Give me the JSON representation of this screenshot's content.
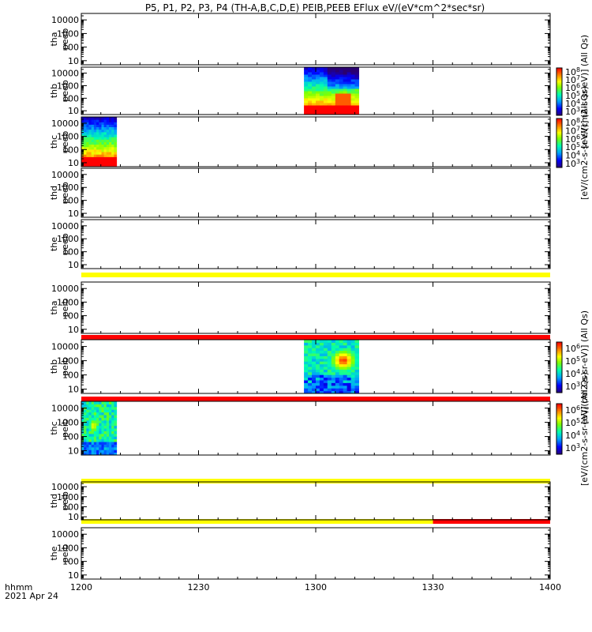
{
  "title": "P5, P1, P2, P3, P4 (TH-A,B,C,D,E) PEIB,PEEB EFlux eV/(eV*cm^2*sec*sr)",
  "footer": {
    "line1": "hhmm",
    "line2": "2021 Apr 24"
  },
  "colorbar_groups": [
    {
      "label": "[eV/(cm2-s-sr-eV)] (All Qs)",
      "ticks": [
        "10^3",
        "10^4",
        "10^5",
        "10^6",
        "10^7",
        "10^8"
      ]
    },
    {
      "label": "[eV/(cm2-s-sr-eV)] (All Qs)",
      "ticks": [
        "10^3",
        "10^4",
        "10^5",
        "10^6",
        "10^7",
        "10^8"
      ]
    },
    {
      "label": "[eV/(cm2-s-sr-eV)] (All Qs)",
      "ticks": [
        "10^3",
        "10^4",
        "10^5",
        "10^6"
      ]
    },
    {
      "label": "[eV/(cm2-s-sr-eV)] (All Qs)",
      "ticks": [
        "10^3",
        "10^4",
        "10^5",
        "10^6"
      ]
    }
  ],
  "chart_data": {
    "type": "heatmap",
    "x_tick_labels": [
      "1200",
      "1230",
      "1300",
      "1330",
      "1400"
    ],
    "x_ticks": [
      0,
      30,
      60,
      90,
      120
    ],
    "xlim": [
      0,
      120
    ],
    "y_tick_labels": [
      "10",
      "100",
      "1000",
      "10000"
    ],
    "ylim": [
      5,
      30000
    ],
    "y_scale": "log",
    "panels": [
      {
        "name_top": "tha",
        "name_bottom": "peeb",
        "blocks": [],
        "bars": []
      },
      {
        "name_top": "thb",
        "name_bottom": "peeb",
        "blocks": [
          {
            "x0": 57,
            "x1": 71,
            "pattern": "electron"
          }
        ],
        "bars": [],
        "colorbar": 0
      },
      {
        "name_top": "thc",
        "name_bottom": "peeb",
        "blocks": [
          {
            "x0": 0,
            "x1": 9,
            "pattern": "electron"
          }
        ],
        "bars": [],
        "colorbar": 1
      },
      {
        "name_top": "thd",
        "name_bottom": "peeb",
        "blocks": [],
        "bars": []
      },
      {
        "name_top": "the",
        "name_bottom": "peeb",
        "blocks": [],
        "bars": [
          {
            "x0": 0,
            "x1": 120,
            "color": "#ffff00"
          }
        ]
      },
      {
        "name_top": "tha",
        "name_bottom": "peib",
        "blocks": [],
        "bars": [
          {
            "x0": 0,
            "x1": 120,
            "color": "#ff0000"
          }
        ]
      },
      {
        "name_top": "thb",
        "name_bottom": "peib",
        "blocks": [
          {
            "x0": 57,
            "x1": 71,
            "pattern": "ion"
          }
        ],
        "bars": [
          {
            "x0": 0,
            "x1": 120,
            "color": "#ff0000"
          }
        ],
        "colorbar": 2
      },
      {
        "name_top": "thc",
        "name_bottom": "peib",
        "blocks": [
          {
            "x0": 0,
            "x1": 9,
            "pattern": "ion-c"
          }
        ],
        "bars": [
          {
            "x0": 0,
            "x1": 120,
            "color": "#ffff00"
          }
        ],
        "colorbar": 3
      },
      {
        "name_top": "thd",
        "name_bottom": "peib",
        "blocks": [],
        "bars": [
          {
            "x0": 0,
            "x1": 90,
            "color": "#ffff00"
          },
          {
            "x0": 90,
            "x1": 120,
            "color": "#ff0000"
          }
        ]
      },
      {
        "name_top": "the",
        "name_bottom": "peib",
        "blocks": [],
        "bars": []
      }
    ]
  }
}
